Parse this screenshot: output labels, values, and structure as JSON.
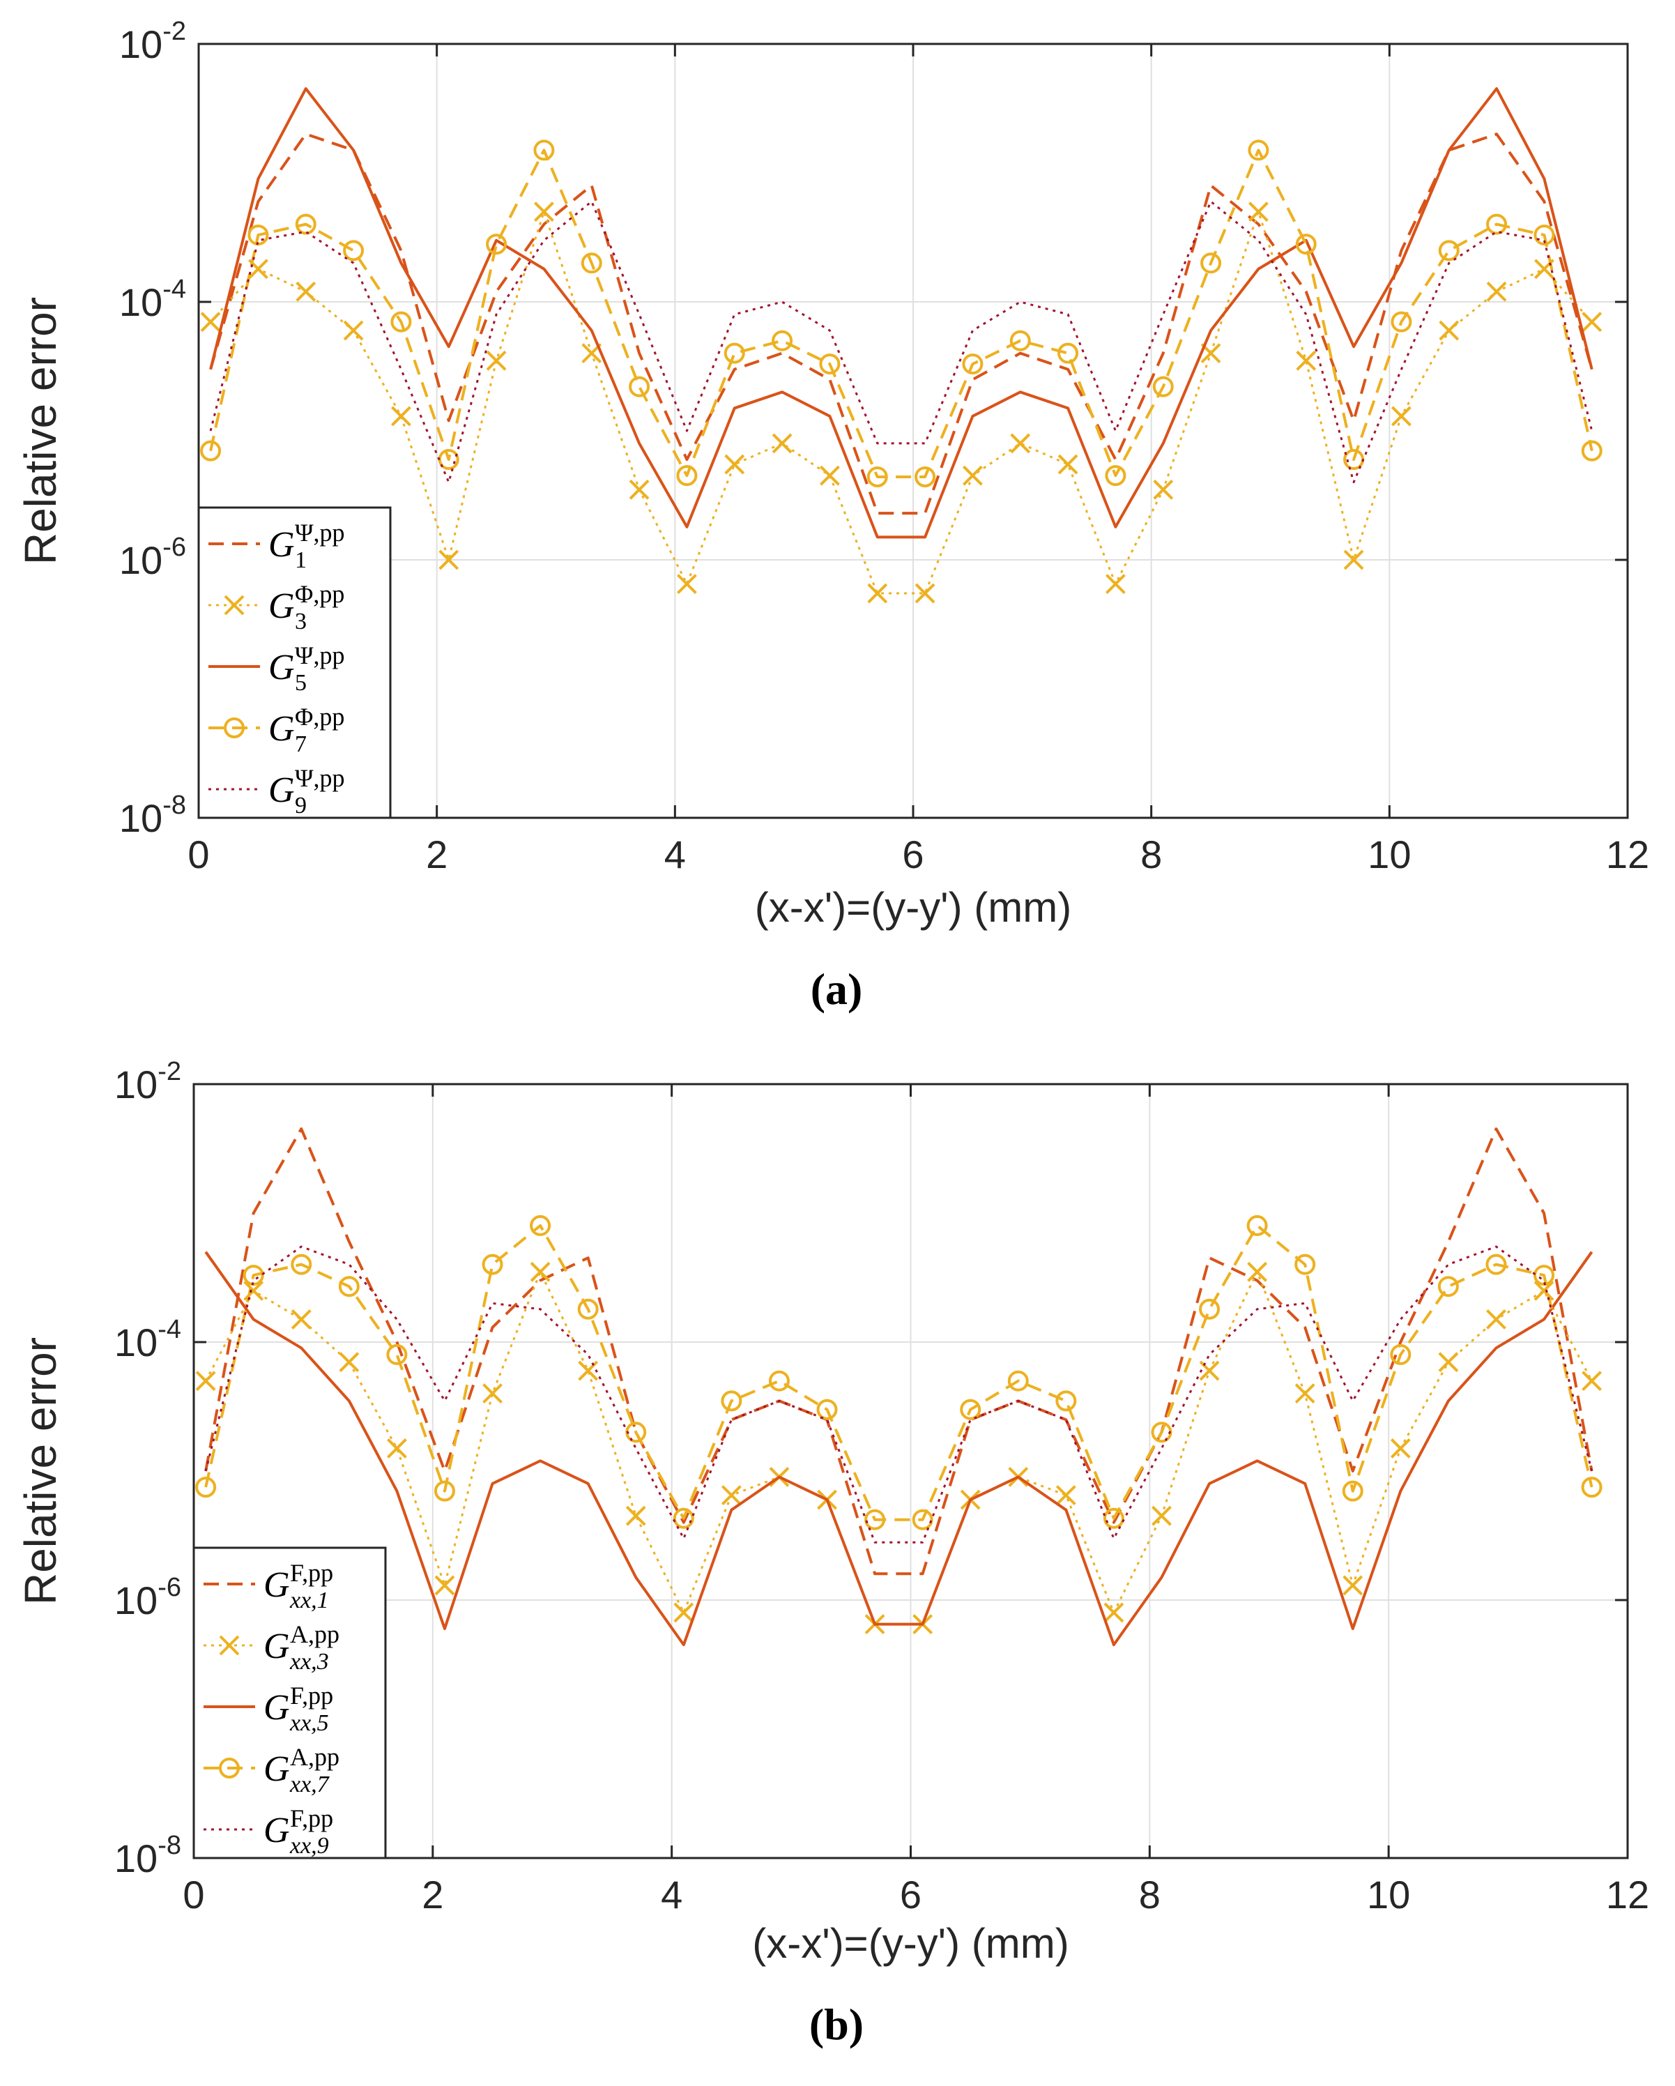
{
  "colors": {
    "red": "#D95319",
    "yellow": "#EDB120",
    "darkred": "#A2142F",
    "grid": "#E0E0E0",
    "axis": "#262626"
  },
  "chart_data": [
    {
      "type": "line",
      "subplot_label": "(a)",
      "xlabel": "(x-x')=(y-y') (mm)",
      "ylabel": "Relative error",
      "xlim": [
        0,
        12
      ],
      "ylim": [
        1e-08,
        0.01
      ],
      "yscale": "log",
      "grid": true,
      "xticks": [
        "0",
        "2",
        "4",
        "6",
        "8",
        "10",
        "12"
      ],
      "yticks": [
        {
          "base": "10",
          "exp": "-8"
        },
        {
          "base": "10",
          "exp": "-6"
        },
        {
          "base": "10",
          "exp": "-4"
        },
        {
          "base": "10",
          "exp": "-2"
        }
      ],
      "legend_position": "bottom-left",
      "x": [
        0.1,
        0.5,
        0.9,
        1.3,
        1.7,
        2.1,
        2.5,
        2.9,
        3.3,
        3.7,
        4.1,
        4.5,
        4.9,
        5.3,
        5.7,
        6.1,
        6.5,
        6.9,
        7.3,
        7.7,
        8.1,
        8.5,
        8.9,
        9.3,
        9.7,
        10.1,
        10.5,
        10.9,
        11.3,
        11.7
      ],
      "series": [
        {
          "name": "G1 Ψ,pp",
          "sym": "G",
          "sub": "1",
          "sup": "Ψ,pp",
          "color": "red",
          "dash": "dashed",
          "marker": "none",
          "values": [
            3e-05,
            0.0006,
            0.002,
            0.0015,
            0.00025,
            1.2e-05,
            0.00012,
            0.0004,
            0.0008,
            4e-05,
            6e-06,
            3e-05,
            4e-05,
            2.5e-05,
            2.3e-06,
            2.3e-06,
            2.5e-05,
            4e-05,
            3e-05,
            6e-06,
            4e-05,
            0.0008,
            0.0004,
            0.00012,
            1.2e-05,
            0.00025,
            0.0015,
            0.002,
            0.0006,
            3e-05
          ]
        },
        {
          "name": "G3 Φ,pp",
          "sym": "G",
          "sub": "3",
          "sup": "Φ,pp",
          "color": "yellow",
          "dash": "dotted",
          "marker": "x",
          "values": [
            7e-05,
            0.00018,
            0.00012,
            6e-05,
            1.3e-05,
            1e-06,
            3.5e-05,
            0.0005,
            4e-05,
            3.5e-06,
            6.5e-07,
            5.5e-06,
            8e-06,
            4.5e-06,
            5.5e-07,
            5.5e-07,
            4.5e-06,
            8e-06,
            5.5e-06,
            6.5e-07,
            3.5e-06,
            4e-05,
            0.0005,
            3.5e-05,
            1e-06,
            1.3e-05,
            6e-05,
            0.00012,
            0.00018,
            7e-05
          ]
        },
        {
          "name": "G5 Ψ,pp",
          "sym": "G",
          "sub": "5",
          "sup": "Ψ,pp",
          "color": "red",
          "dash": "solid",
          "marker": "none",
          "values": [
            3e-05,
            0.0009,
            0.0045,
            0.0015,
            0.0002,
            4.5e-05,
            0.0003,
            0.00018,
            6e-05,
            8e-06,
            1.8e-06,
            1.5e-05,
            2e-05,
            1.3e-05,
            1.5e-06,
            1.5e-06,
            1.3e-05,
            2e-05,
            1.5e-05,
            1.8e-06,
            8e-06,
            6e-05,
            0.00018,
            0.0003,
            4.5e-05,
            0.0002,
            0.0015,
            0.0045,
            0.0009,
            3e-05
          ]
        },
        {
          "name": "G7 Φ,pp",
          "sym": "G",
          "sub": "7",
          "sup": "Φ,pp",
          "color": "yellow",
          "dash": "dashed",
          "marker": "o",
          "values": [
            7e-06,
            0.00033,
            0.0004,
            0.00025,
            7e-05,
            6e-06,
            0.00028,
            0.0015,
            0.0002,
            2.2e-05,
            4.5e-06,
            4e-05,
            5e-05,
            3.3e-05,
            4.4e-06,
            4.4e-06,
            3.3e-05,
            5e-05,
            4e-05,
            4.5e-06,
            2.2e-05,
            0.0002,
            0.0015,
            0.00028,
            6e-06,
            7e-05,
            0.00025,
            0.0004,
            0.00033,
            7e-06
          ]
        },
        {
          "name": "G9 Ψ,pp",
          "sym": "G",
          "sub": "9",
          "sup": "Ψ,pp",
          "color": "darkred",
          "dash": "dotted",
          "marker": "none",
          "values": [
            1e-05,
            0.0003,
            0.00035,
            0.0002,
            3e-05,
            4e-06,
            8e-05,
            0.0003,
            0.0006,
            8e-05,
            1e-05,
            8e-05,
            0.0001,
            6e-05,
            8e-06,
            8e-06,
            6e-05,
            0.0001,
            8e-05,
            1e-05,
            8e-05,
            0.0006,
            0.0003,
            8e-05,
            4e-06,
            3e-05,
            0.0002,
            0.00035,
            0.0003,
            1e-05
          ]
        }
      ]
    },
    {
      "type": "line",
      "subplot_label": "(b)",
      "xlabel": "(x-x')=(y-y') (mm)",
      "ylabel": "Relative error",
      "xlim": [
        0,
        12
      ],
      "ylim": [
        1e-08,
        0.01
      ],
      "yscale": "log",
      "grid": true,
      "xticks": [
        "0",
        "2",
        "4",
        "6",
        "8",
        "10",
        "12"
      ],
      "yticks": [
        {
          "base": "10",
          "exp": "-8"
        },
        {
          "base": "10",
          "exp": "-6"
        },
        {
          "base": "10",
          "exp": "-4"
        },
        {
          "base": "10",
          "exp": "-2"
        }
      ],
      "legend_position": "bottom-left",
      "x": [
        0.1,
        0.5,
        0.9,
        1.3,
        1.7,
        2.1,
        2.5,
        2.9,
        3.3,
        3.7,
        4.1,
        4.5,
        4.9,
        5.3,
        5.7,
        6.1,
        6.5,
        6.9,
        7.3,
        7.7,
        8.1,
        8.5,
        8.9,
        9.3,
        9.7,
        10.1,
        10.5,
        10.9,
        11.3,
        11.7
      ],
      "series": [
        {
          "name": "Gxx,1 F,pp",
          "sym": "G",
          "sub": "xx,1",
          "sup": "F,pp",
          "color": "red",
          "dash": "dashed",
          "marker": "none",
          "values": [
            1e-05,
            0.001,
            0.0045,
            0.0006,
            0.0001,
            1e-05,
            0.00013,
            0.0003,
            0.00045,
            2e-05,
            4e-06,
            2.5e-05,
            3.5e-05,
            2.5e-05,
            1.6e-06,
            1.6e-06,
            2.5e-05,
            3.5e-05,
            2.5e-05,
            4e-06,
            2e-05,
            0.00045,
            0.0003,
            0.00013,
            1e-05,
            0.0001,
            0.0006,
            0.0045,
            0.001,
            1e-05
          ]
        },
        {
          "name": "Gxx,3 A,pp",
          "sym": "G",
          "sub": "xx,3",
          "sup": "A,pp",
          "color": "yellow",
          "dash": "dotted",
          "marker": "x",
          "values": [
            5e-05,
            0.00025,
            0.00015,
            7e-05,
            1.5e-05,
            1.3e-06,
            4e-05,
            0.00035,
            6e-05,
            4.5e-06,
            8e-07,
            6.5e-06,
            9e-06,
            6e-06,
            6.5e-07,
            6.5e-07,
            6e-06,
            9e-06,
            6.5e-06,
            8e-07,
            4.5e-06,
            6e-05,
            0.00035,
            4e-05,
            1.3e-06,
            1.5e-05,
            7e-05,
            0.00015,
            0.00025,
            5e-05
          ]
        },
        {
          "name": "Gxx,5 F,pp",
          "sym": "G",
          "sub": "xx,5",
          "sup": "F,pp",
          "color": "red",
          "dash": "solid",
          "marker": "none",
          "values": [
            0.0005,
            0.00015,
            9e-05,
            3.5e-05,
            7e-06,
            6e-07,
            8e-06,
            1.2e-05,
            8e-06,
            1.5e-06,
            4.5e-07,
            5e-06,
            9e-06,
            6e-06,
            6.5e-07,
            6.5e-07,
            6e-06,
            9e-06,
            5e-06,
            4.5e-07,
            1.5e-06,
            8e-06,
            1.2e-05,
            8e-06,
            6e-07,
            7e-06,
            3.5e-05,
            9e-05,
            0.00015,
            0.0005
          ]
        },
        {
          "name": "Gxx,7 A,pp",
          "sym": "G",
          "sub": "xx,7",
          "sup": "A,pp",
          "color": "yellow",
          "dash": "dashed",
          "marker": "o",
          "values": [
            7.5e-06,
            0.00033,
            0.0004,
            0.00027,
            8e-05,
            7e-06,
            0.0004,
            0.0008,
            0.00018,
            2e-05,
            4.3e-06,
            3.5e-05,
            5e-05,
            3e-05,
            4.2e-06,
            4.2e-06,
            3e-05,
            5e-05,
            3.5e-05,
            4.3e-06,
            2e-05,
            0.00018,
            0.0008,
            0.0004,
            7e-06,
            8e-05,
            0.00027,
            0.0004,
            0.00033,
            7.5e-06
          ]
        },
        {
          "name": "Gxx,9 F,pp",
          "sym": "G",
          "sub": "xx,9",
          "sup": "F,pp",
          "color": "darkred",
          "dash": "dotted",
          "marker": "none",
          "values": [
            1e-05,
            0.0003,
            0.00055,
            0.0004,
            0.00015,
            3.5e-05,
            0.0002,
            0.00018,
            8e-05,
            1.5e-05,
            3e-06,
            2.5e-05,
            3.5e-05,
            2.5e-05,
            2.8e-06,
            2.8e-06,
            2.5e-05,
            3.5e-05,
            2.5e-05,
            3e-06,
            1.5e-05,
            8e-05,
            0.00018,
            0.0002,
            3.5e-05,
            0.00015,
            0.0004,
            0.00055,
            0.0003,
            1e-05
          ]
        }
      ]
    }
  ]
}
